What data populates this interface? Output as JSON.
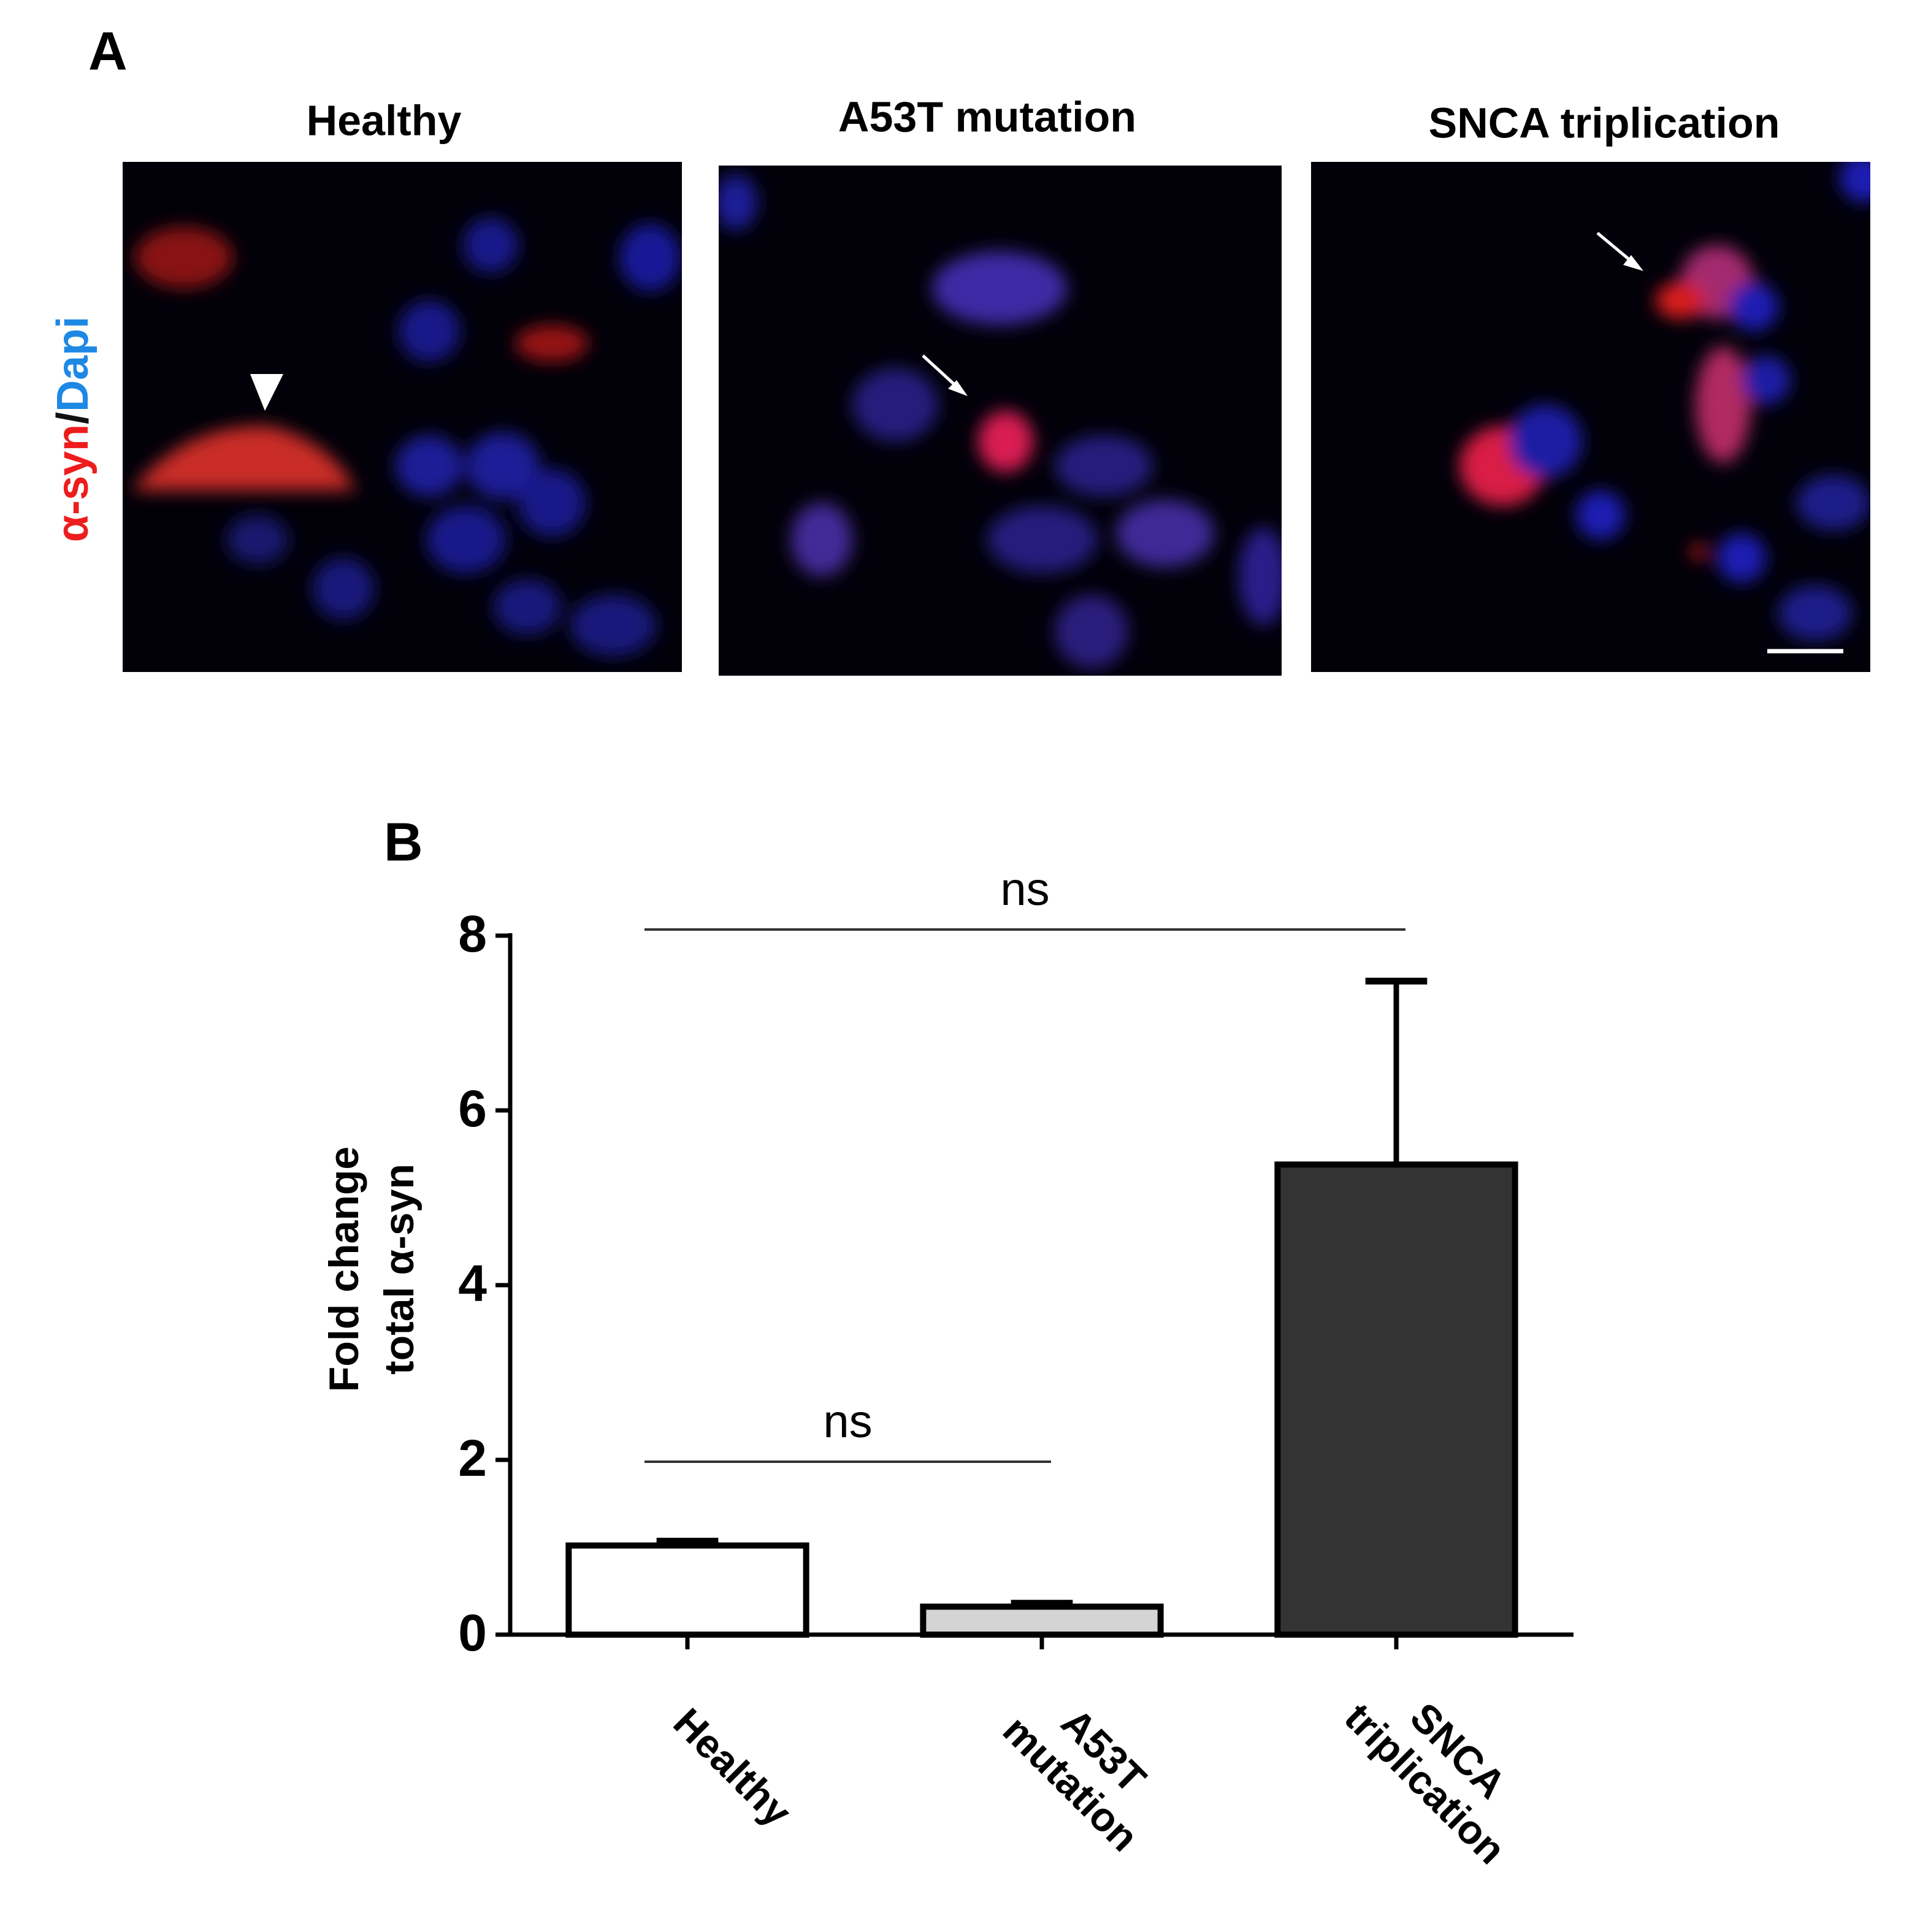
{
  "panel_a": {
    "label": "A",
    "titles": [
      "Healthy",
      "A53T mutation",
      "SNCA triplication"
    ],
    "stain_label": [
      "α-syn",
      "/",
      "Dapi"
    ],
    "stain_colors": [
      "#ee1c1c",
      "#111111",
      "#1e88e5"
    ]
  },
  "chart_data": {
    "type": "bar",
    "panel_label": "B",
    "y_label": [
      "Fold change",
      "total α-syn"
    ],
    "categories": [
      "Healthy",
      "A53T mutation",
      "SNCA triplication"
    ],
    "values": [
      1.02,
      0.32,
      5.38
    ],
    "errors": [
      0.05,
      0.04,
      2.1
    ],
    "colors": [
      "#ffffff",
      "#d4d4d4",
      "#333333"
    ],
    "ylim": [
      0,
      8
    ],
    "yticks": [
      0,
      2,
      4,
      6,
      8
    ],
    "annotations": [
      {
        "text": "ns",
        "from": 0,
        "to": 2
      },
      {
        "text": "ns",
        "from": 0,
        "to": 1
      }
    ]
  }
}
